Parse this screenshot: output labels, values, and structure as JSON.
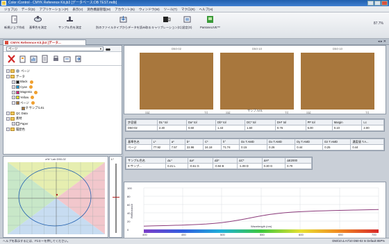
{
  "window": {
    "title": "Color iControl - CMYK Reference Kit.jb3 [データベース:DB TEST.mdb]"
  },
  "menu": [
    "ジョブ(J)",
    "データ(D)",
    "アプリケーション(P)",
    "表示(V)",
    "測色機器管理(M)",
    "アカウント(N)",
    "ウィンドウ(W)",
    "ツール(T)",
    "マクロ(R)",
    "ヘルプ(H)"
  ],
  "toolbar": {
    "items": [
      {
        "label": "新規ジョブ作成",
        "icon": "document-new-icon"
      },
      {
        "label": "基準色を測定",
        "icon": "measure-standard-icon"
      },
      {
        "label": "サンプル色を測定",
        "icon": "measure-sample-icon"
      },
      {
        "label": "別のファイルタイプからデータを読み取る",
        "icon": "import-icon"
      },
      {
        "label": "キャリブレーション(C)",
        "icon": "calibration-icon"
      },
      {
        "label": "設定(O)",
        "icon": "settings-icon"
      },
      {
        "label": "PantoneLIVE™",
        "icon": "pantone-live-icon"
      }
    ],
    "zoom": "87.7%"
  },
  "tab": {
    "label": "CMYK Reference Kit.jb3 [データ..."
  },
  "tree": {
    "selector": "ページ",
    "rows": [
      {
        "level": 0,
        "label": "ページ",
        "kind": "folder",
        "dot": "#9aa5b3"
      },
      {
        "level": 0,
        "label": "データ",
        "kind": "folder"
      },
      {
        "level": 1,
        "label": "Black",
        "color": "#1b1b1b",
        "dot": "#f0a030"
      },
      {
        "level": 1,
        "label": "Cyan",
        "color": "#1e9ad6",
        "dot": "#f0a030"
      },
      {
        "level": 1,
        "label": "Magenta",
        "color": "#d6237a",
        "dot": "#f0a030"
      },
      {
        "level": 1,
        "label": "Yellow",
        "color": "#f2e21b",
        "dot": "#f0a030"
      },
      {
        "level": 1,
        "label": "ページ",
        "color": "#a8773d",
        "dot": "#f0a030"
      },
      {
        "level": 2,
        "label": "サンプル01",
        "kind": "sample"
      },
      {
        "level": 0,
        "label": "QC Data",
        "kind": "folder"
      },
      {
        "level": 0,
        "label": "素材",
        "kind": "folder"
      },
      {
        "level": 1,
        "label": "Paper",
        "color": "#ffffff",
        "dot": "#f0a030"
      },
      {
        "level": 0,
        "label": "履歴色",
        "kind": "folder"
      }
    ]
  },
  "plot": {
    "title": "a*b* Lab  D50-02",
    "l_axis": "L*"
  },
  "swatches": {
    "tiles": [
      {
        "label": "D50-02",
        "b1": "Std",
        "b2": "Trl"
      },
      {
        "label": "D50-10",
        "b1": "Std",
        "b2": "Trl"
      },
      {
        "label": "D50-10",
        "b1": "Std",
        "b2": "Trl"
      }
    ],
    "caption": "サンプル01",
    "color": "#a8773d"
  },
  "table1": {
    "headers": [
      "許容値",
      "DL* tol",
      "Da* tol",
      "Db* tol",
      "DC* tol",
      "DH* tol",
      "PF tol",
      "Margin",
      "Lc"
    ],
    "rows": [
      [
        "D50-02",
        "2.30",
        "0.60",
        "1.43",
        "1.60",
        "0.76",
        "5.00",
        "0.10",
        "2.00"
      ]
    ]
  },
  "table2": {
    "headers": [
      "基準色名",
      "L*",
      "a*",
      "b*",
      "C*",
      "h°",
      "Dx T.AMD",
      "Dx T.AMD",
      "Dy T.AMD",
      "Dz T.AMD",
      "濃度値 T.A..."
    ],
    "rows": [
      [
        "ページ",
        "77.92",
        "7.57",
        "22.96",
        "24.18",
        "71.74",
        "0.15",
        "0.26",
        "0.44",
        "0.25",
        "0.44"
      ]
    ]
  },
  "table3": {
    "headers": [
      "サンプル色名",
      "ΔL*",
      "Δa*",
      "Δb*",
      "ΔC*",
      "ΔH*",
      "ΔE2000"
    ],
    "rows": [
      [
        "0-サンプ...",
        "0.21 L",
        "-0.61 G",
        "-0.94 B",
        "-1.09 D",
        "0.30 G",
        "0.70"
      ]
    ]
  },
  "spectral": {
    "xlabel": "Wavelength (nm)",
    "ylabel": "Reflectance",
    "x_ticks": [
      "400",
      "450",
      "500",
      "550",
      "600",
      "650",
      "700"
    ],
    "y_ticks": [
      "100",
      "80",
      "60",
      "40",
      "20",
      "0"
    ],
    "curve_color": "#8b3a7a"
  },
  "status": {
    "left": "ヘルプを表示するには、F1キーを押してください。",
    "right": "D50/10   Δ   A7/10  D50-02  In Default  85P%   "
  }
}
